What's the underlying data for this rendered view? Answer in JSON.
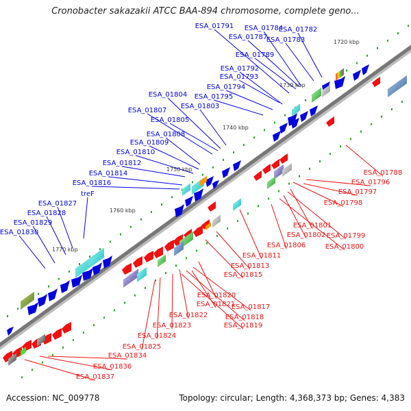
{
  "header": {
    "title": "Cronobacter sakazakii ATCC BAA-894 chromosome, complete geno..."
  },
  "footer": {
    "accession": "Accession: NC_009778",
    "summary": "Topology: circular; Length: 4,368,373 bp; Genes: 4,383"
  },
  "colors": {
    "forward_strand": "#0000dd",
    "reverse_strand": "#ee1111",
    "backbone": "#777777",
    "tick": "#22aa22"
  },
  "scale_labels": [
    "1720 kbp",
    "1730 kbp",
    "1740 kbp",
    "1750 kbp",
    "1760 kbp",
    "1770 kbp"
  ],
  "forward_labels": [
    "ESA_01791",
    "ESA_01784",
    "ESA_01782",
    "ESA_01787",
    "ESA_01783",
    "ESA_01789",
    "ESA_01792",
    "ESA_01793",
    "ESA_01794",
    "ESA_01795",
    "ESA_01804",
    "ESA_01803",
    "ESA_01807",
    "ESA_01805",
    "ESA_01808",
    "ESA_01809",
    "ESA_01810",
    "ESA_01812",
    "ESA_01814",
    "ESA_01816",
    "treF",
    "ESA_01827",
    "ESA_01828",
    "ESA_01829",
    "ESA_01830"
  ],
  "reverse_labels": [
    "ESA_01788",
    "ESA_01796",
    "ESA_01797",
    "ESA_01798",
    "ESA_01801",
    "ESA_01799",
    "ESA_01802",
    "ESA_01800",
    "ESA_01806",
    "ESA_01811",
    "ESA_01813",
    "ESA_01815",
    "ESA_01820",
    "ESA_01817",
    "ESA_01821",
    "ESA_01818",
    "ESA_01822",
    "ESA_01819",
    "ESA_01823",
    "ESA_01824",
    "ESA_01825",
    "ESA_01834",
    "ESA_01836",
    "ESA_01837"
  ]
}
